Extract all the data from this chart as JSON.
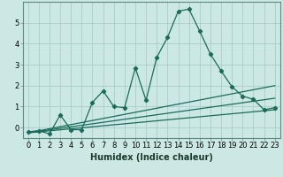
{
  "x": [
    0,
    1,
    2,
    3,
    4,
    5,
    6,
    7,
    8,
    9,
    10,
    11,
    12,
    13,
    14,
    15,
    16,
    17,
    18,
    19,
    20,
    21,
    22,
    23
  ],
  "line1": [
    -0.2,
    -0.15,
    -0.3,
    0.6,
    -0.1,
    -0.1,
    1.2,
    1.75,
    1.0,
    0.95,
    2.85,
    1.3,
    3.35,
    4.3,
    5.55,
    5.65,
    4.6,
    3.5,
    2.7,
    1.95,
    1.5,
    1.35,
    0.85,
    0.95
  ],
  "trend1_x": [
    0,
    23
  ],
  "trend1_y": [
    -0.25,
    2.0
  ],
  "trend2_x": [
    0,
    23
  ],
  "trend2_y": [
    -0.25,
    0.85
  ],
  "trend3_x": [
    0,
    23
  ],
  "trend3_y": [
    -0.25,
    1.4
  ],
  "color": "#1a6b5a",
  "bg_color": "#cce8e4",
  "grid_color": "#aaccc8",
  "xlabel": "Humidex (Indice chaleur)",
  "ylim": [
    -0.5,
    6.0
  ],
  "xlim": [
    -0.5,
    23.5
  ],
  "yticks": [
    0,
    1,
    2,
    3,
    4,
    5
  ],
  "xticks": [
    0,
    1,
    2,
    3,
    4,
    5,
    6,
    7,
    8,
    9,
    10,
    11,
    12,
    13,
    14,
    15,
    16,
    17,
    18,
    19,
    20,
    21,
    22,
    23
  ],
  "xlabel_fontsize": 7.0,
  "tick_fontsize": 6.0
}
